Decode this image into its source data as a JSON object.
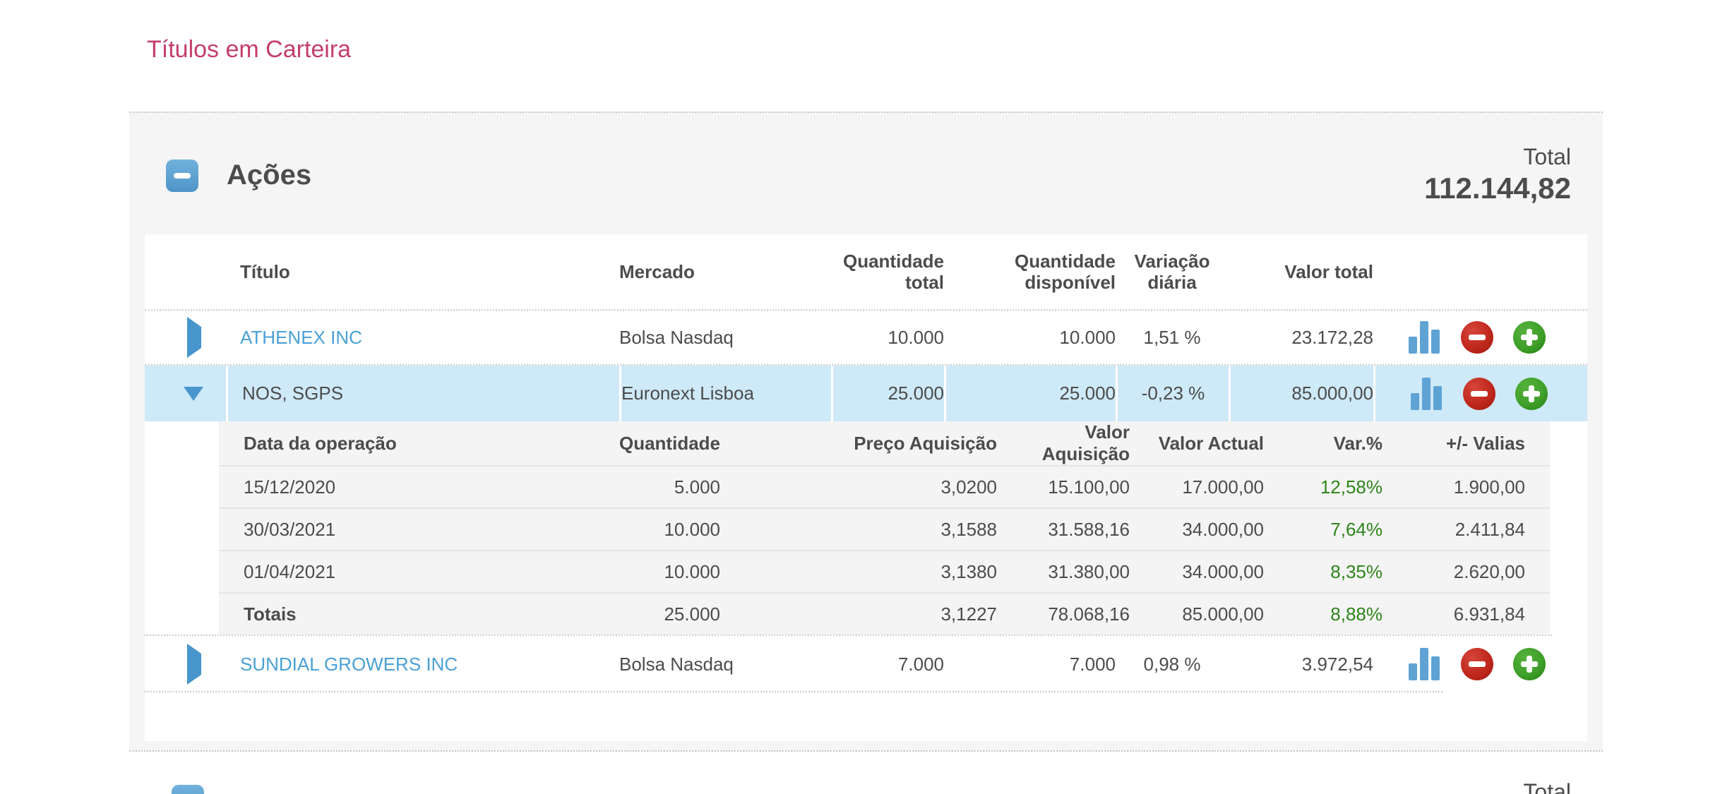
{
  "page": {
    "title": "Títulos em Carteira"
  },
  "colors": {
    "accent_pink": "#c43e6b",
    "link_blue": "#4aa0d5",
    "positive_green": "#2e851b",
    "selected_row_blue": "#cee9f8",
    "collapse_button_blue": "#5ea8d8",
    "chart_icon_blue": "#5ea3d4",
    "remove_icon_red": "#c0281c",
    "add_icon_green": "#3fa02a",
    "panel_gray": "#f5f5f5"
  },
  "acoes": {
    "title": "Ações",
    "total_label": "Total",
    "total_value": "112.144,82",
    "table": {
      "headers": {
        "titulo": "Título",
        "mercado": "Mercado",
        "quantidade_total": "Quantidade total",
        "quantidade_disponivel": "Quantidade disponível",
        "variacao_diaria": "Variação diária",
        "valor_total": "Valor total"
      },
      "rows": [
        {
          "titulo": "ATHENEX INC",
          "mercado": "Bolsa Nasdaq",
          "quantidade_total": "10.000",
          "quantidade_disponivel": "10.000",
          "variacao_diaria": "1,51 %",
          "valor_total": "23.172,28"
        },
        {
          "titulo": "NOS, SGPS",
          "mercado": "Euronext Lisboa",
          "quantidade_total": "25.000",
          "quantidade_disponivel": "25.000",
          "variacao_diaria": "-0,23 %",
          "valor_total": "85.000,00"
        },
        {
          "titulo": "SUNDIAL GROWERS INC",
          "mercado": "Bolsa Nasdaq",
          "quantidade_total": "7.000",
          "quantidade_disponivel": "7.000",
          "variacao_diaria": "0,98 %",
          "valor_total": "3.972,54"
        }
      ],
      "detail": {
        "headers": {
          "data_operacao": "Data da operação",
          "quantidade": "Quantidade",
          "preco_aquisicao": "Preço Aquisição",
          "valor_aquisicao": "Valor Aquisição",
          "valor_actual": "Valor Actual",
          "var_pct": "Var.%",
          "valias": "+/- Valias"
        },
        "rows": [
          {
            "data": "15/12/2020",
            "quantidade": "5.000",
            "preco": "3,0200",
            "valor_aquisicao": "15.100,00",
            "valor_actual": "17.000,00",
            "var_pct": "12,58%",
            "valias": "1.900,00"
          },
          {
            "data": "30/03/2021",
            "quantidade": "10.000",
            "preco": "3,1588",
            "valor_aquisicao": "31.588,16",
            "valor_actual": "34.000,00",
            "var_pct": "7,64%",
            "valias": "2.411,84"
          },
          {
            "data": "01/04/2021",
            "quantidade": "10.000",
            "preco": "3,1380",
            "valor_aquisicao": "31.380,00",
            "valor_actual": "34.000,00",
            "var_pct": "8,35%",
            "valias": "2.620,00"
          },
          {
            "data": "Totais",
            "quantidade": "25.000",
            "preco": "3,1227",
            "valor_aquisicao": "78.068,16",
            "valor_actual": "85.000,00",
            "var_pct": "8,88%",
            "valias": "6.931,84"
          }
        ]
      }
    }
  },
  "next_section": {
    "total_label": "Total"
  }
}
